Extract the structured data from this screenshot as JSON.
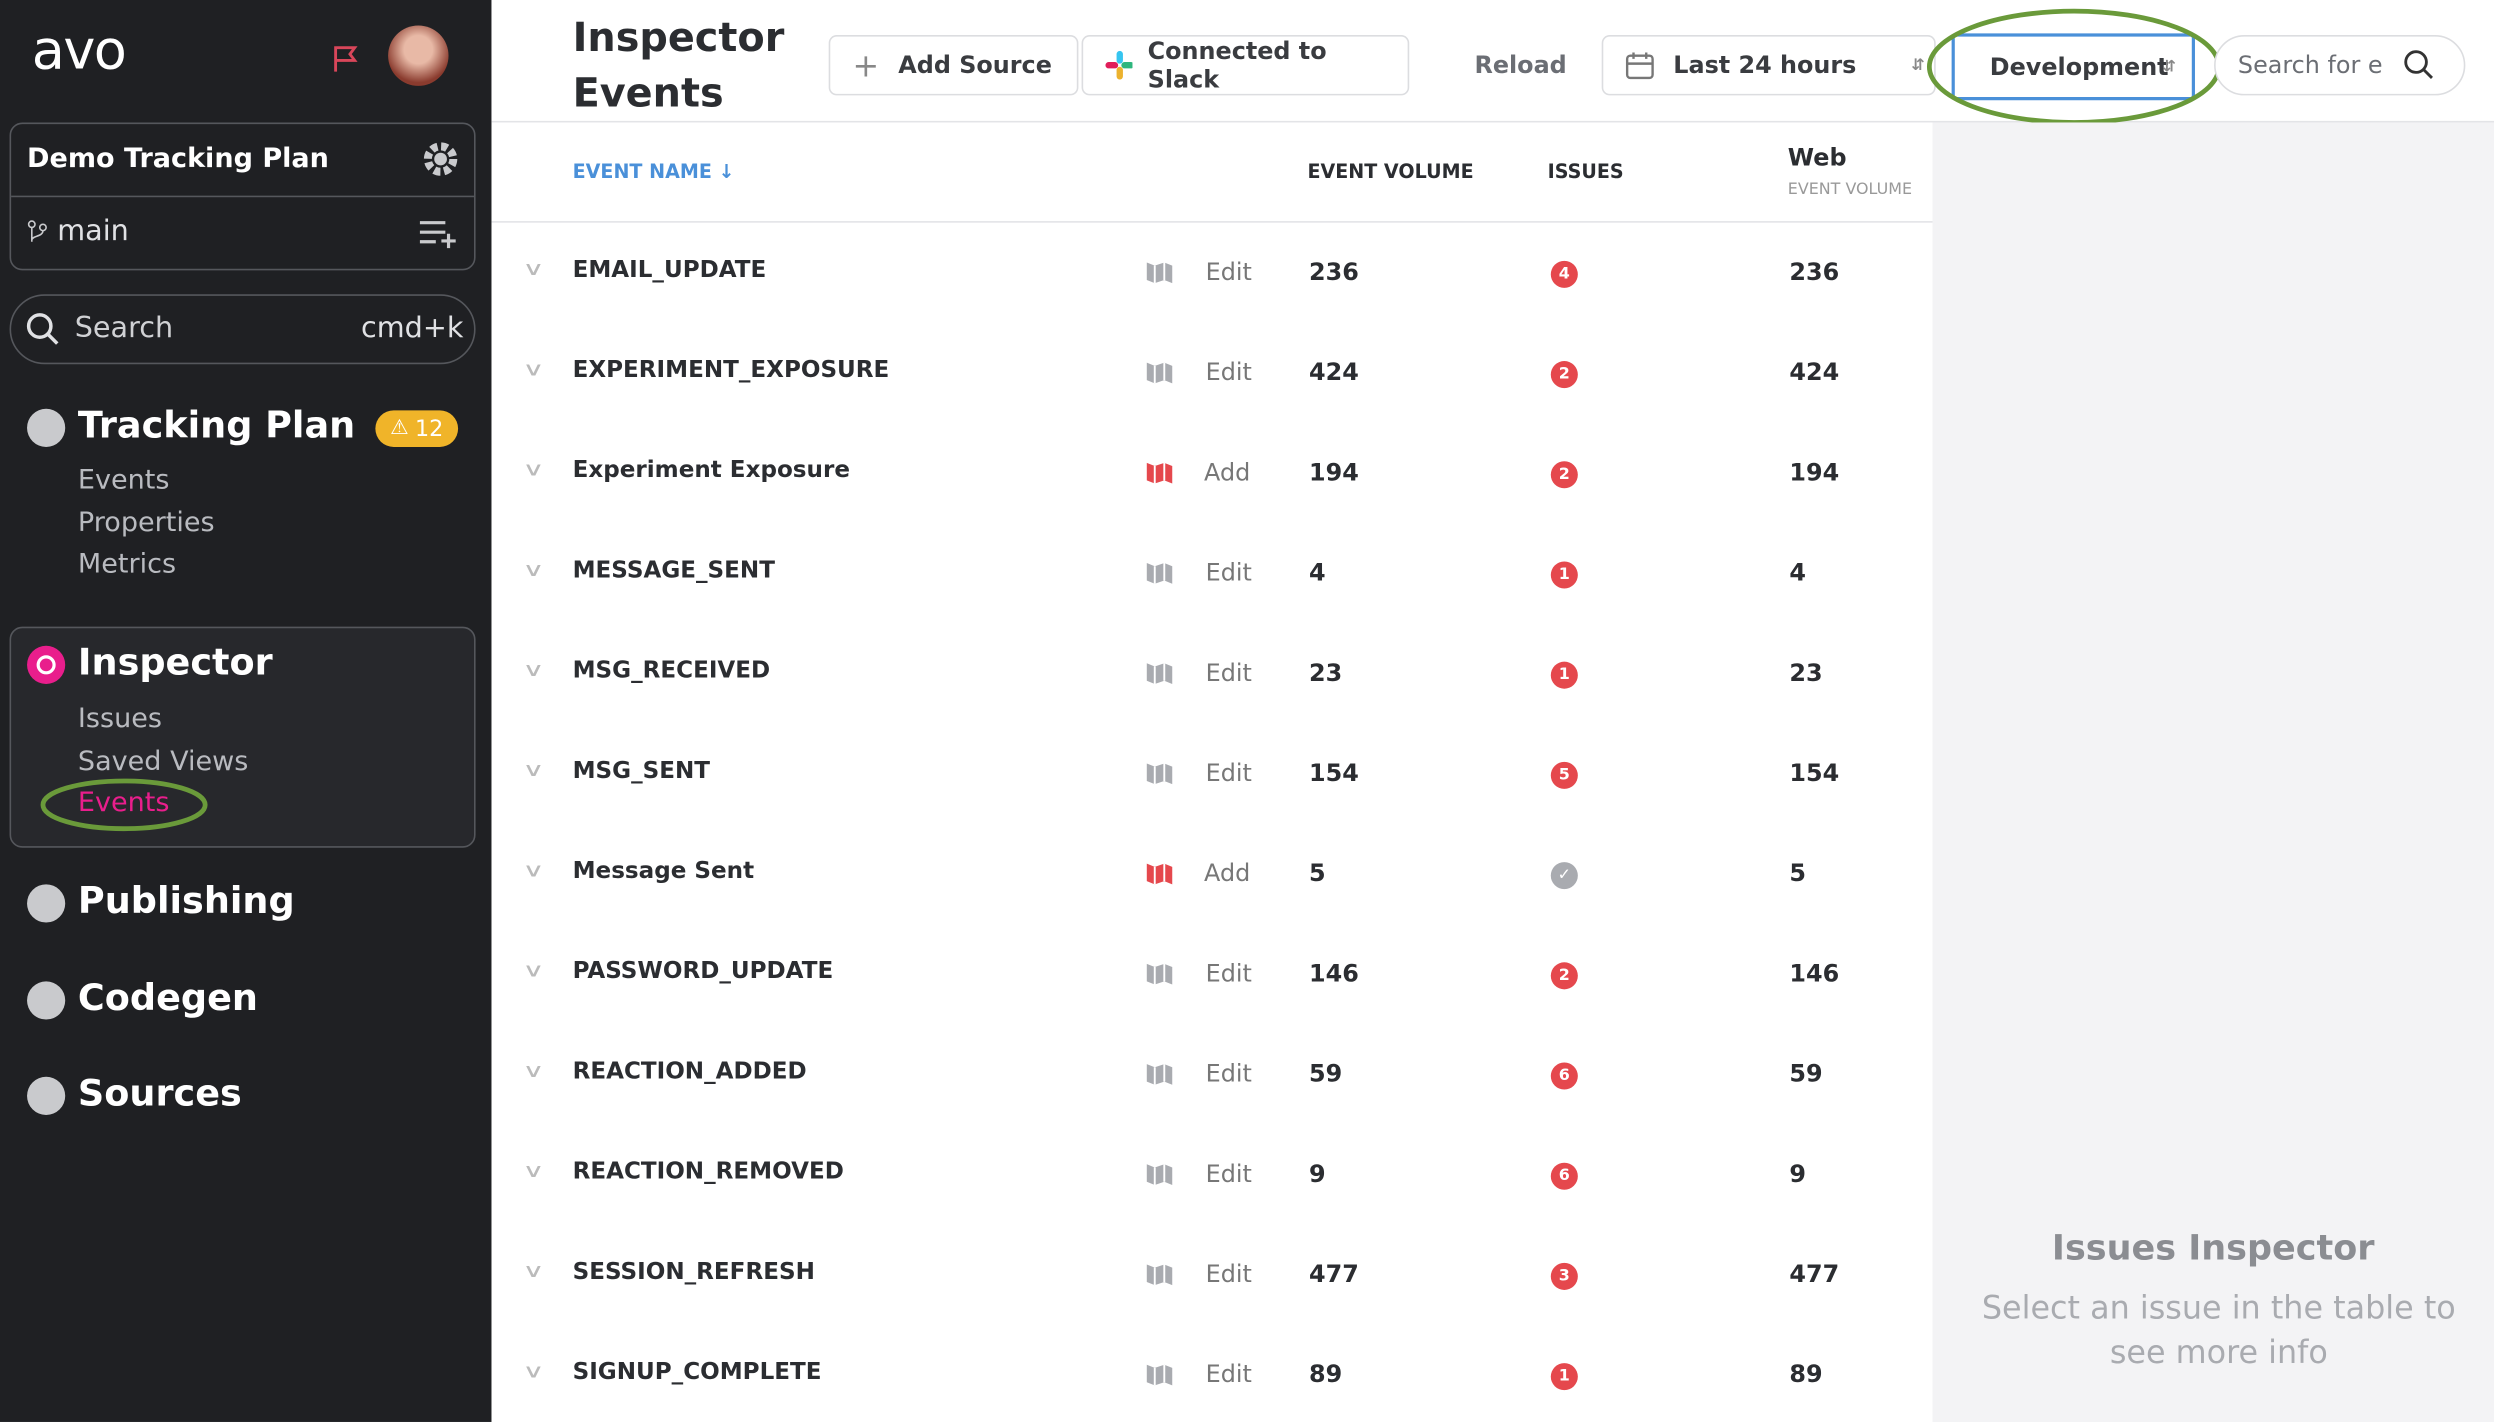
{
  "sidebar": {
    "logo": "avo",
    "workspace": "Demo Tracking Plan",
    "branch": "main",
    "search": "Search",
    "search_shortcut": "cmd+k",
    "tracking_plan": {
      "label": "Tracking Plan",
      "badge": "12",
      "items": [
        "Events",
        "Properties",
        "Metrics"
      ]
    },
    "inspector": {
      "label": "Inspector",
      "items": [
        "Issues",
        "Saved Views",
        "Events"
      ]
    },
    "sections": [
      "Publishing",
      "Codegen",
      "Sources"
    ]
  },
  "header": {
    "title": "Inspector Events",
    "add_source": "Add Source",
    "slack": "Connected to Slack",
    "reload": "Reload",
    "time_range": "Last 24 hours",
    "environment": "Development",
    "search": "Search for e"
  },
  "table": {
    "columns": {
      "name": "EVENT NAME",
      "volume": "EVENT VOLUME",
      "issues": "ISSUES",
      "web": "Web",
      "web_sub": "EVENT VOLUME"
    },
    "rows": [
      {
        "name": "EMAIL_UPDATE",
        "action": "Edit",
        "volume": "236",
        "issues": "4",
        "web": "236"
      },
      {
        "name": "EXPERIMENT_EXPOSURE",
        "action": "Edit",
        "volume": "424",
        "issues": "2",
        "web": "424"
      },
      {
        "name": "Experiment Exposure",
        "action": "Add",
        "volume": "194",
        "issues": "2",
        "web": "194"
      },
      {
        "name": "MESSAGE_SENT",
        "action": "Edit",
        "volume": "4",
        "issues": "1",
        "web": "4"
      },
      {
        "name": "MSG_RECEIVED",
        "action": "Edit",
        "volume": "23",
        "issues": "1",
        "web": "23"
      },
      {
        "name": "MSG_SENT",
        "action": "Edit",
        "volume": "154",
        "issues": "5",
        "web": "154"
      },
      {
        "name": "Message Sent",
        "action": "Add",
        "volume": "5",
        "issues": null,
        "web": "5"
      },
      {
        "name": "PASSWORD_UPDATE",
        "action": "Edit",
        "volume": "146",
        "issues": "2",
        "web": "146"
      },
      {
        "name": "REACTION_ADDED",
        "action": "Edit",
        "volume": "59",
        "issues": "6",
        "web": "59"
      },
      {
        "name": "REACTION_REMOVED",
        "action": "Edit",
        "volume": "9",
        "issues": "6",
        "web": "9"
      },
      {
        "name": "SESSION_REFRESH",
        "action": "Edit",
        "volume": "477",
        "issues": "3",
        "web": "477"
      },
      {
        "name": "SIGNUP_COMPLETE",
        "action": "Edit",
        "volume": "89",
        "issues": "1",
        "web": "89"
      }
    ]
  },
  "panel": {
    "title": "Issues Inspector",
    "text": "Select an issue in the table to see more info"
  }
}
